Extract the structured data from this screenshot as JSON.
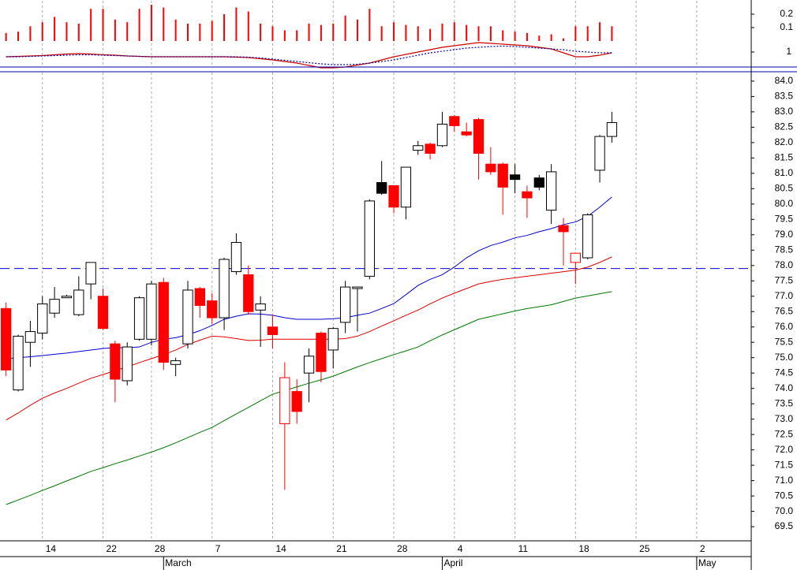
{
  "chart_data": [
    {
      "type": "indicator",
      "values": [
        0.06,
        0.07,
        0.11,
        0.14,
        0.18,
        0.14,
        0.13,
        0.24,
        0.24,
        0.16,
        0.14,
        0.24,
        0.27,
        0.25,
        0.16,
        0.13,
        0.13,
        0.15,
        0.2,
        0.25,
        0.22,
        0.13,
        0.11,
        0.08,
        0.08,
        0.13,
        0.12,
        0.13,
        0.19,
        0.16,
        0.24,
        0.11,
        0.14,
        0.12,
        0.11,
        0.09,
        0.13,
        0.14,
        0.12,
        0.11,
        0.11,
        0.08,
        0.07,
        0.06,
        0.04,
        0.05,
        0.02,
        0.11,
        0.11,
        0.14,
        0.11,
        null,
        null,
        null,
        null,
        null,
        null,
        null,
        null,
        null,
        null,
        null
      ],
      "color": "#ff0000",
      "lines": [
        {
          "color": "#cc0000",
          "style": "solid",
          "axis": "y2",
          "values": [
            0.94,
            0.945,
            0.95,
            0.955,
            0.965,
            0.975,
            0.98,
            0.975,
            0.965,
            0.96,
            0.95,
            0.945,
            0.94,
            0.94,
            0.94,
            0.94,
            0.94,
            0.94,
            0.94,
            0.935,
            0.93,
            0.915,
            0.9,
            0.88,
            0.86,
            0.83,
            0.8,
            0.8,
            0.81,
            0.835,
            0.86,
            0.9,
            0.94,
            0.97,
            1.0,
            1.03,
            1.06,
            1.08,
            1.1,
            1.12,
            1.11,
            1.1,
            1.09,
            1.08,
            1.06,
            1.04,
            0.99,
            0.94,
            0.94,
            0.96,
            0.99,
            null,
            null,
            null,
            null,
            null,
            null,
            null,
            null,
            null,
            null,
            null
          ]
        },
        {
          "color": "#0000aa",
          "style": "dotted",
          "axis": "y2",
          "values": [
            0.94,
            0.94,
            0.945,
            0.95,
            0.955,
            0.96,
            0.965,
            0.965,
            0.96,
            0.955,
            0.95,
            0.945,
            0.94,
            0.94,
            0.94,
            0.94,
            0.94,
            0.94,
            0.94,
            0.94,
            0.935,
            0.925,
            0.91,
            0.895,
            0.88,
            0.865,
            0.85,
            0.84,
            0.84,
            0.845,
            0.86,
            0.88,
            0.9,
            0.93,
            0.96,
            0.99,
            1.01,
            1.03,
            1.05,
            1.06,
            1.07,
            1.075,
            1.07,
            1.06,
            1.05,
            1.04,
            1.03,
            1.01,
            1.0,
            0.99,
            0.99,
            null,
            null,
            null,
            null,
            null,
            null,
            null,
            null,
            null,
            null,
            null
          ]
        }
      ],
      "ylim": [
        -0.2,
        0.3
      ],
      "yticks": [
        0.1,
        0.2
      ],
      "y2lim": [
        0.8,
        1.65
      ],
      "y2ticks": [
        1
      ]
    },
    {
      "type": "candlestick",
      "categories": [
        null,
        null,
        null,
        "14",
        null,
        null,
        null,
        null,
        "22",
        null,
        null,
        null,
        "28",
        null,
        null,
        null,
        null,
        "7",
        null,
        null,
        null,
        null,
        "14",
        null,
        null,
        null,
        null,
        "21",
        null,
        null,
        null,
        null,
        "28",
        null,
        null,
        null,
        null,
        "4",
        null,
        null,
        null,
        null,
        "11",
        null,
        null,
        null,
        null,
        "18",
        null,
        null,
        null,
        null,
        "25",
        null,
        null,
        null,
        null,
        "2",
        null,
        null,
        null,
        null
      ],
      "month_labels": [
        null,
        null,
        null,
        null,
        null,
        null,
        null,
        null,
        null,
        null,
        null,
        null,
        null,
        "March",
        null,
        null,
        null,
        null,
        null,
        null,
        null,
        null,
        null,
        null,
        null,
        null,
        null,
        null,
        null,
        null,
        null,
        null,
        null,
        null,
        null,
        null,
        "April",
        null,
        null,
        null,
        null,
        null,
        null,
        null,
        null,
        null,
        null,
        null,
        null,
        null,
        null,
        null,
        null,
        null,
        null,
        null,
        null,
        "May",
        null,
        null,
        null,
        null
      ],
      "open": [
        76.6,
        73.95,
        75.5,
        75.8,
        76.45,
        76.95,
        76.4,
        77.4,
        77.0,
        75.45,
        74.25,
        75.6,
        75.6,
        77.45,
        74.78,
        75.45,
        77.25,
        76.85,
        76.3,
        77.8,
        77.7,
        76.55,
        76.0,
        72.85,
        73.9,
        74.5,
        75.8,
        75.25,
        76.15,
        77.25,
        77.65,
        80.7,
        80.6,
        79.9,
        81.75,
        81.95,
        81.9,
        82.85,
        82.35,
        82.75,
        81.3,
        81.3,
        80.95,
        80.4,
        80.85,
        79.8,
        79.3,
        78.1,
        78.25,
        81.1,
        82.2,
        null,
        null,
        null,
        null,
        null,
        null,
        null,
        null,
        null,
        null,
        null
      ],
      "high": [
        76.8,
        75.75,
        76.2,
        77.0,
        77.3,
        77.05,
        77.65,
        78.1,
        77.25,
        75.55,
        75.5,
        77.0,
        77.5,
        77.6,
        75.0,
        77.5,
        77.3,
        77.1,
        78.25,
        79.05,
        78.0,
        77.0,
        76.4,
        74.85,
        74.3,
        75.3,
        75.85,
        76.0,
        77.5,
        77.3,
        80.15,
        81.4,
        80.6,
        81.2,
        82.05,
        82.0,
        83.0,
        82.9,
        82.65,
        82.8,
        81.85,
        81.35,
        81.3,
        80.6,
        80.95,
        81.3,
        79.55,
        78.4,
        79.7,
        82.25,
        83.0,
        null,
        null,
        null,
        null,
        null,
        null,
        null,
        null,
        null,
        null,
        null
      ],
      "low": [
        74.4,
        73.9,
        74.7,
        75.6,
        76.3,
        76.95,
        76.35,
        76.9,
        75.9,
        73.55,
        74.1,
        75.55,
        75.4,
        74.6,
        74.4,
        75.3,
        76.3,
        76.1,
        75.9,
        77.7,
        76.4,
        75.35,
        75.3,
        70.7,
        72.85,
        73.55,
        74.2,
        74.65,
        75.8,
        75.85,
        77.55,
        80.3,
        79.7,
        79.5,
        81.6,
        81.45,
        81.85,
        82.35,
        82.2,
        80.8,
        80.95,
        79.65,
        80.35,
        79.55,
        80.45,
        79.35,
        78.0,
        77.4,
        78.2,
        80.7,
        82.0,
        null,
        null,
        null,
        null,
        null,
        null,
        null,
        null,
        null,
        null,
        null
      ],
      "close": [
        74.6,
        75.7,
        75.85,
        76.75,
        76.9,
        77.0,
        77.2,
        78.1,
        75.95,
        74.3,
        75.35,
        76.95,
        77.4,
        74.85,
        74.9,
        77.2,
        76.7,
        76.3,
        78.2,
        78.75,
        76.5,
        76.75,
        75.75,
        74.35,
        73.25,
        75.05,
        74.55,
        75.95,
        77.3,
        77.3,
        80.1,
        80.35,
        79.9,
        81.2,
        81.9,
        81.65,
        82.6,
        82.55,
        82.25,
        81.65,
        81.05,
        80.55,
        80.8,
        80.2,
        80.55,
        81.05,
        79.1,
        78.4,
        79.65,
        82.2,
        82.65,
        null,
        null,
        null,
        null,
        null,
        null,
        null,
        null,
        null,
        null,
        null
      ],
      "up_color": "#000000",
      "down_color": "#ff0000",
      "lines": [
        {
          "color": "#0000cc",
          "values": [
            74.97,
            75.0,
            75.03,
            75.07,
            75.11,
            75.15,
            75.2,
            75.25,
            75.3,
            75.33,
            75.32,
            75.35,
            75.5,
            75.6,
            75.65,
            75.75,
            75.88,
            76.05,
            76.25,
            76.35,
            76.43,
            76.42,
            76.38,
            76.3,
            76.25,
            76.25,
            76.25,
            76.27,
            76.3,
            76.38,
            76.45,
            76.6,
            76.76,
            77.05,
            77.35,
            77.55,
            77.7,
            77.95,
            78.25,
            78.48,
            78.65,
            78.76,
            78.9,
            78.98,
            79.1,
            79.2,
            79.33,
            79.42,
            79.6,
            79.9,
            80.23,
            null,
            null,
            null,
            null,
            null,
            null,
            null,
            null,
            null,
            null,
            null
          ]
        },
        {
          "color": "#dd0000",
          "values": [
            72.97,
            73.2,
            73.45,
            73.68,
            73.85,
            74.0,
            74.17,
            74.33,
            74.45,
            74.58,
            74.7,
            74.84,
            74.97,
            75.1,
            75.25,
            75.43,
            75.57,
            75.7,
            75.68,
            75.62,
            75.56,
            75.57,
            75.6,
            75.6,
            75.6,
            75.6,
            75.6,
            75.6,
            75.62,
            75.7,
            75.85,
            76.03,
            76.2,
            76.38,
            76.55,
            76.75,
            76.94,
            77.1,
            77.25,
            77.4,
            77.48,
            77.55,
            77.6,
            77.65,
            77.7,
            77.75,
            77.8,
            77.85,
            77.95,
            78.1,
            78.28,
            null,
            null,
            null,
            null,
            null,
            null,
            null,
            null,
            null,
            null,
            null
          ]
        },
        {
          "color": "#007700",
          "values": [
            70.22,
            70.37,
            70.52,
            70.68,
            70.83,
            70.99,
            71.14,
            71.3,
            71.42,
            71.55,
            71.67,
            71.8,
            71.93,
            72.07,
            72.23,
            72.4,
            72.57,
            72.73,
            72.95,
            73.17,
            73.38,
            73.6,
            73.81,
            73.93,
            74.05,
            74.17,
            74.28,
            74.4,
            74.55,
            74.7,
            74.84,
            74.97,
            75.1,
            75.22,
            75.35,
            75.55,
            75.74,
            75.91,
            76.08,
            76.25,
            76.34,
            76.43,
            76.52,
            76.6,
            76.66,
            76.72,
            76.83,
            76.94,
            77.01,
            77.08,
            77.15,
            null,
            null,
            null,
            null,
            null,
            null,
            null,
            null,
            null,
            null,
            null
          ]
        }
      ],
      "reference_line": {
        "value": 77.9,
        "color": "#0000cc"
      },
      "ylim": [
        69.04,
        84.28
      ],
      "yticks": [
        {
          "value": 84,
          "label": "84.0"
        },
        83.5,
        {
          "value": 83,
          "label": "83.0"
        },
        82.5,
        {
          "value": 82,
          "label": "82.0"
        },
        81.5,
        {
          "value": 81,
          "label": "81.0"
        },
        80.5,
        {
          "value": 80,
          "label": "80.0"
        },
        79.5,
        {
          "value": 79,
          "label": "79.0"
        },
        78.5,
        {
          "value": 78,
          "label": "78.0"
        },
        77.5,
        {
          "value": 77,
          "label": "77.0"
        },
        76.5,
        {
          "value": 76,
          "label": "76.0"
        },
        75.5,
        {
          "value": 75,
          "label": "75.0"
        },
        74.5,
        {
          "value": 74,
          "label": "74.0"
        },
        73.5,
        {
          "value": 73,
          "label": "73.0"
        },
        72.5,
        {
          "value": 72,
          "label": "72.0"
        },
        71.5,
        {
          "value": 71,
          "label": "71.0"
        },
        70.5,
        {
          "value": 70,
          "label": "70.0"
        },
        69.5
      ],
      "grid": true
    }
  ]
}
